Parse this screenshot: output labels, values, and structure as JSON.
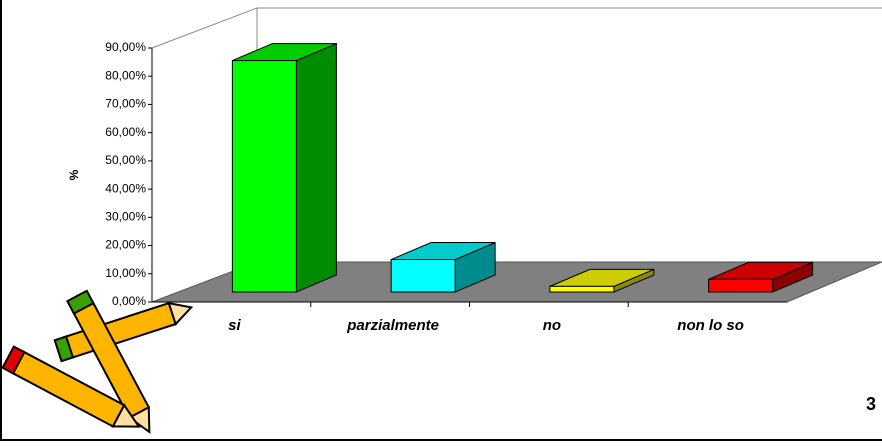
{
  "chart_data": {
    "type": "bar3d",
    "ylabel": "%",
    "categories": [
      "si",
      "parzialmente",
      "no",
      "non lo so"
    ],
    "values": [
      82,
      11.5,
      2,
      4.5
    ],
    "colors": [
      "#00ff00",
      "#00ffff",
      "#ffff00",
      "#ff0000"
    ],
    "ylim": [
      0,
      90
    ],
    "yticks": [
      {
        "value": 0,
        "label": "0,00%"
      },
      {
        "value": 10,
        "label": "10,00%"
      },
      {
        "value": 20,
        "label": "20,00%"
      },
      {
        "value": 30,
        "label": "30,00%"
      },
      {
        "value": 40,
        "label": "40,00%"
      },
      {
        "value": 50,
        "label": "50,00%"
      },
      {
        "value": 60,
        "label": "60,00%"
      },
      {
        "value": 70,
        "label": "70,00%"
      },
      {
        "value": 80,
        "label": "80,00%"
      },
      {
        "value": 90,
        "label": "90,00%"
      }
    ],
    "page_number": "3"
  }
}
